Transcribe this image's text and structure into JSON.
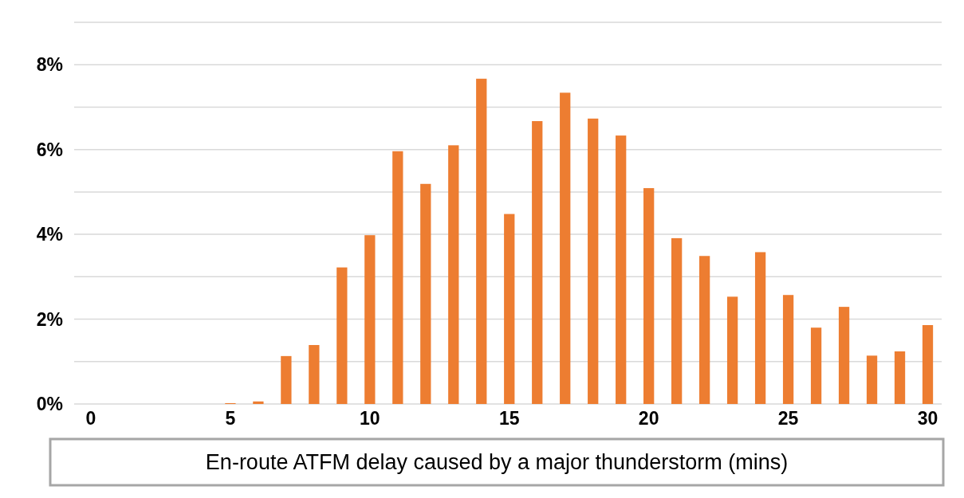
{
  "chart_data": {
    "type": "bar",
    "xlabel": "En-route ATFM delay caused by a major thunderstorm (mins)",
    "x": [
      0,
      1,
      2,
      3,
      4,
      5,
      6,
      7,
      8,
      9,
      10,
      11,
      12,
      13,
      14,
      15,
      16,
      17,
      18,
      19,
      20,
      21,
      22,
      23,
      24,
      25,
      26,
      27,
      28,
      29,
      30
    ],
    "values": [
      0,
      0,
      0,
      0,
      0,
      0.02,
      0.06,
      1.13,
      1.39,
      3.22,
      3.98,
      5.96,
      5.19,
      6.1,
      7.67,
      4.48,
      6.67,
      7.34,
      6.73,
      6.33,
      5.09,
      3.91,
      3.49,
      2.53,
      3.58,
      2.57,
      1.8,
      2.29,
      1.14,
      1.24,
      1.86
    ],
    "color": "#ed7d31",
    "xlim": [
      -0.6,
      30.5
    ],
    "xticks": [
      0,
      5,
      10,
      15,
      20,
      25,
      30
    ],
    "ylim": [
      0,
      9
    ],
    "yticks": [
      {
        "value": 0,
        "label": "0%"
      },
      {
        "value": 1,
        "label": null
      },
      {
        "value": 2,
        "label": "2%"
      },
      {
        "value": 3,
        "label": null
      },
      {
        "value": 4,
        "label": "4%"
      },
      {
        "value": 5,
        "label": null
      },
      {
        "value": 6,
        "label": "6%"
      },
      {
        "value": 7,
        "label": null
      },
      {
        "value": 8,
        "label": "8%"
      },
      {
        "value": 9,
        "label": null
      }
    ],
    "grid": "y"
  }
}
